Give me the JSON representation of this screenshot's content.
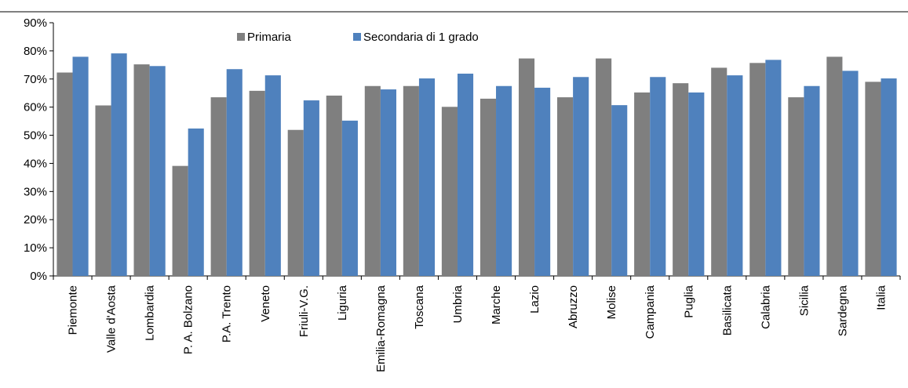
{
  "chart_data": {
    "type": "bar",
    "categories": [
      "Piemonte",
      "Valle d'Aosta",
      "Lombardia",
      "P. A. Bolzano",
      "P.A. Trento",
      "Veneto",
      "Friuli-V.G.",
      "Liguria",
      "Emilia-Romagna",
      "Toscana",
      "Umbria",
      "Marche",
      "Lazio",
      "Abruzzo",
      "Molise",
      "Campania",
      "Puglia",
      "Basilicata",
      "Calabria",
      "Sicilia",
      "Sardegna",
      "Italia"
    ],
    "series": [
      {
        "name": "Primaria",
        "color": "#7f7f7f",
        "values": [
          72.3,
          60.6,
          75.2,
          39.1,
          63.5,
          65.8,
          51.9,
          64.1,
          67.5,
          67.5,
          60.1,
          63.0,
          77.3,
          63.5,
          77.3,
          65.2,
          68.5,
          74.0,
          75.7,
          63.5,
          77.9,
          69.0
        ]
      },
      {
        "name": "Secondaria di 1 grado",
        "color": "#4f81bd",
        "values": [
          77.9,
          79.1,
          74.6,
          52.4,
          73.5,
          71.3,
          62.4,
          55.2,
          66.3,
          70.2,
          71.9,
          67.5,
          66.9,
          70.7,
          60.7,
          70.7,
          65.2,
          71.3,
          76.8,
          67.5,
          72.9,
          70.2
        ]
      }
    ],
    "yticks": [
      "0%",
      "10%",
      "20%",
      "30%",
      "40%",
      "50%",
      "60%",
      "70%",
      "80%",
      "90%"
    ],
    "ylim": [
      0,
      90
    ],
    "legend_position": "top-left",
    "grid": false
  }
}
